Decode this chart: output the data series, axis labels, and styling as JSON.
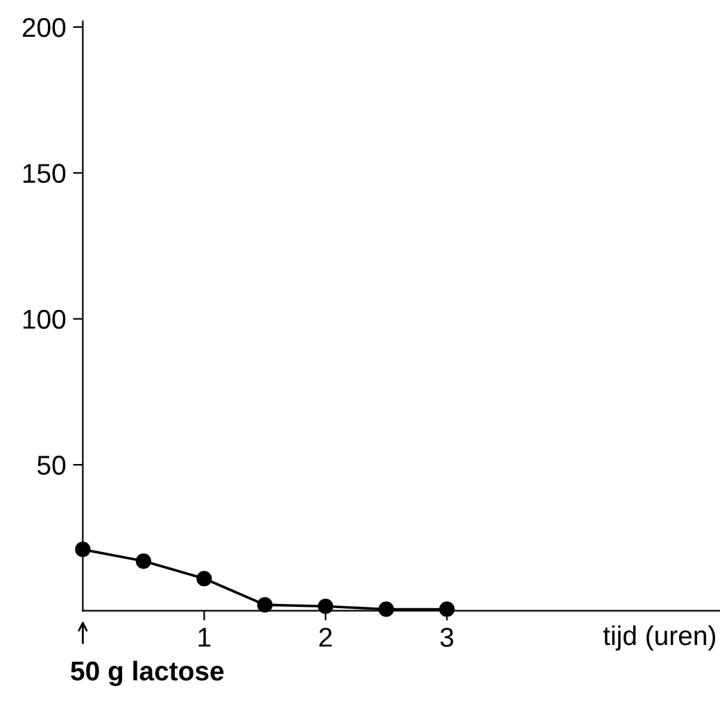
{
  "chart_data": {
    "type": "line",
    "xlabel": "tijd (uren)",
    "x": [
      0,
      0.5,
      1,
      1.5,
      2,
      2.5,
      3
    ],
    "series": [
      {
        "color": "#000000",
        "values": [
          21,
          17,
          11,
          2,
          1.5,
          0.5,
          0.5
        ]
      }
    ],
    "xlim": [
      0,
      5.25
    ],
    "xticks": [
      1,
      2,
      3
    ],
    "ylim": [
      0,
      202
    ],
    "yticks": [
      50,
      100,
      150,
      200
    ],
    "marker": "circle",
    "line_style": "solid",
    "grid": false,
    "legend": false,
    "annotations": [
      "50 g lactose"
    ]
  }
}
